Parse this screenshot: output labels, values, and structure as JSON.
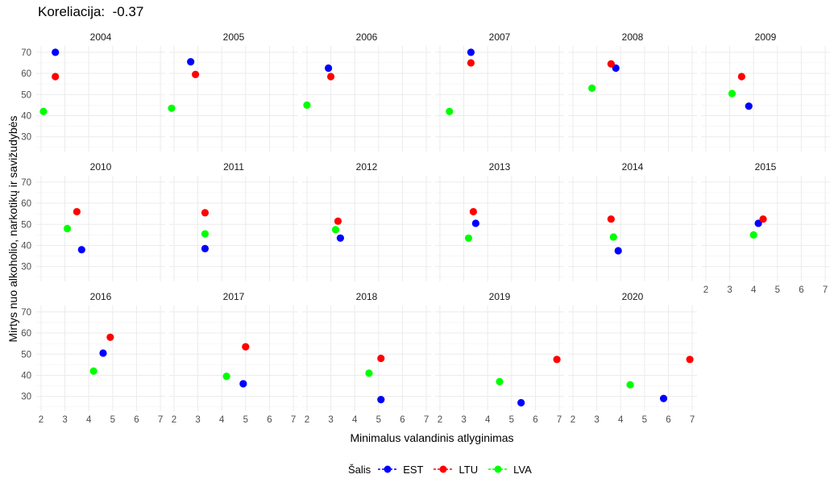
{
  "chart_data": {
    "type": "scatter",
    "title": "Koreliacija:  -0.37",
    "xlabel": "Minimalus valandinis atlyginimas",
    "ylabel": "Mirtys nuo alkoholio, narkotikų ir savižudybės",
    "xlim": [
      1.8,
      7.2
    ],
    "ylim": [
      23,
      73
    ],
    "x_ticks": [
      2,
      3,
      4,
      5,
      6,
      7
    ],
    "y_ticks": [
      30,
      40,
      50,
      60,
      70
    ],
    "grid": true,
    "legend": {
      "title": "Šalis",
      "position": "bottom"
    },
    "series_colors": {
      "EST": "#0000ff",
      "LTU": "#ff0000",
      "LVA": "#00ff00"
    },
    "panels": [
      {
        "label": "2004",
        "points": [
          {
            "series": "EST",
            "x": 2.6,
            "y": 70
          },
          {
            "series": "LTU",
            "x": 2.6,
            "y": 58.5
          },
          {
            "series": "LVA",
            "x": 2.1,
            "y": 42
          }
        ]
      },
      {
        "label": "2005",
        "points": [
          {
            "series": "EST",
            "x": 2.7,
            "y": 65.5
          },
          {
            "series": "LTU",
            "x": 2.9,
            "y": 59.5
          },
          {
            "series": "LVA",
            "x": 1.9,
            "y": 43.5
          }
        ]
      },
      {
        "label": "2006",
        "points": [
          {
            "series": "EST",
            "x": 2.9,
            "y": 62.5
          },
          {
            "series": "LTU",
            "x": 3.0,
            "y": 58.5
          },
          {
            "series": "LVA",
            "x": 2.0,
            "y": 45
          }
        ]
      },
      {
        "label": "2007",
        "points": [
          {
            "series": "EST",
            "x": 3.3,
            "y": 70
          },
          {
            "series": "LTU",
            "x": 3.3,
            "y": 65
          },
          {
            "series": "LVA",
            "x": 2.4,
            "y": 42
          }
        ]
      },
      {
        "label": "2008",
        "points": [
          {
            "series": "EST",
            "x": 3.8,
            "y": 62.5
          },
          {
            "series": "LTU",
            "x": 3.6,
            "y": 64.5
          },
          {
            "series": "LVA",
            "x": 2.8,
            "y": 53
          }
        ]
      },
      {
        "label": "2009",
        "points": [
          {
            "series": "EST",
            "x": 3.8,
            "y": 44.5
          },
          {
            "series": "LTU",
            "x": 3.5,
            "y": 58.5
          },
          {
            "series": "LVA",
            "x": 3.1,
            "y": 50.5
          }
        ]
      },
      {
        "label": "2010",
        "points": [
          {
            "series": "EST",
            "x": 3.7,
            "y": 38
          },
          {
            "series": "LTU",
            "x": 3.5,
            "y": 56
          },
          {
            "series": "LVA",
            "x": 3.1,
            "y": 48
          }
        ]
      },
      {
        "label": "2011",
        "points": [
          {
            "series": "EST",
            "x": 3.3,
            "y": 38.5
          },
          {
            "series": "LTU",
            "x": 3.3,
            "y": 55.5
          },
          {
            "series": "LVA",
            "x": 3.3,
            "y": 45.5
          }
        ]
      },
      {
        "label": "2012",
        "points": [
          {
            "series": "EST",
            "x": 3.4,
            "y": 43.5
          },
          {
            "series": "LTU",
            "x": 3.3,
            "y": 51.5
          },
          {
            "series": "LVA",
            "x": 3.2,
            "y": 47.5
          }
        ]
      },
      {
        "label": "2013",
        "points": [
          {
            "series": "EST",
            "x": 3.5,
            "y": 50.5
          },
          {
            "series": "LTU",
            "x": 3.4,
            "y": 56
          },
          {
            "series": "LVA",
            "x": 3.2,
            "y": 43.5
          }
        ]
      },
      {
        "label": "2014",
        "points": [
          {
            "series": "EST",
            "x": 3.9,
            "y": 37.5
          },
          {
            "series": "LTU",
            "x": 3.6,
            "y": 52.5
          },
          {
            "series": "LVA",
            "x": 3.7,
            "y": 44
          }
        ]
      },
      {
        "label": "2015",
        "points": [
          {
            "series": "EST",
            "x": 4.2,
            "y": 50.5
          },
          {
            "series": "LTU",
            "x": 4.4,
            "y": 52.5
          },
          {
            "series": "LVA",
            "x": 4.0,
            "y": 45
          }
        ]
      },
      {
        "label": "2016",
        "points": [
          {
            "series": "EST",
            "x": 4.6,
            "y": 50.5
          },
          {
            "series": "LTU",
            "x": 4.9,
            "y": 58
          },
          {
            "series": "LVA",
            "x": 4.2,
            "y": 42
          }
        ]
      },
      {
        "label": "2017",
        "points": [
          {
            "series": "EST",
            "x": 4.9,
            "y": 36
          },
          {
            "series": "LTU",
            "x": 5.0,
            "y": 53.5
          },
          {
            "series": "LVA",
            "x": 4.2,
            "y": 39.5
          }
        ]
      },
      {
        "label": "2018",
        "points": [
          {
            "series": "EST",
            "x": 5.1,
            "y": 28.5
          },
          {
            "series": "LTU",
            "x": 5.1,
            "y": 48
          },
          {
            "series": "LVA",
            "x": 4.6,
            "y": 41
          }
        ]
      },
      {
        "label": "2019",
        "points": [
          {
            "series": "EST",
            "x": 5.4,
            "y": 27
          },
          {
            "series": "LTU",
            "x": 6.9,
            "y": 47.5
          },
          {
            "series": "LVA",
            "x": 4.5,
            "y": 37
          }
        ]
      },
      {
        "label": "2020",
        "points": [
          {
            "series": "EST",
            "x": 5.8,
            "y": 29
          },
          {
            "series": "LTU",
            "x": 6.9,
            "y": 47.5
          },
          {
            "series": "LVA",
            "x": 4.4,
            "y": 35.5
          }
        ]
      }
    ]
  },
  "legend_items": [
    {
      "label": "EST",
      "color": "#0000ff"
    },
    {
      "label": "LTU",
      "color": "#ff0000"
    },
    {
      "label": "LVA",
      "color": "#00ff00"
    }
  ]
}
